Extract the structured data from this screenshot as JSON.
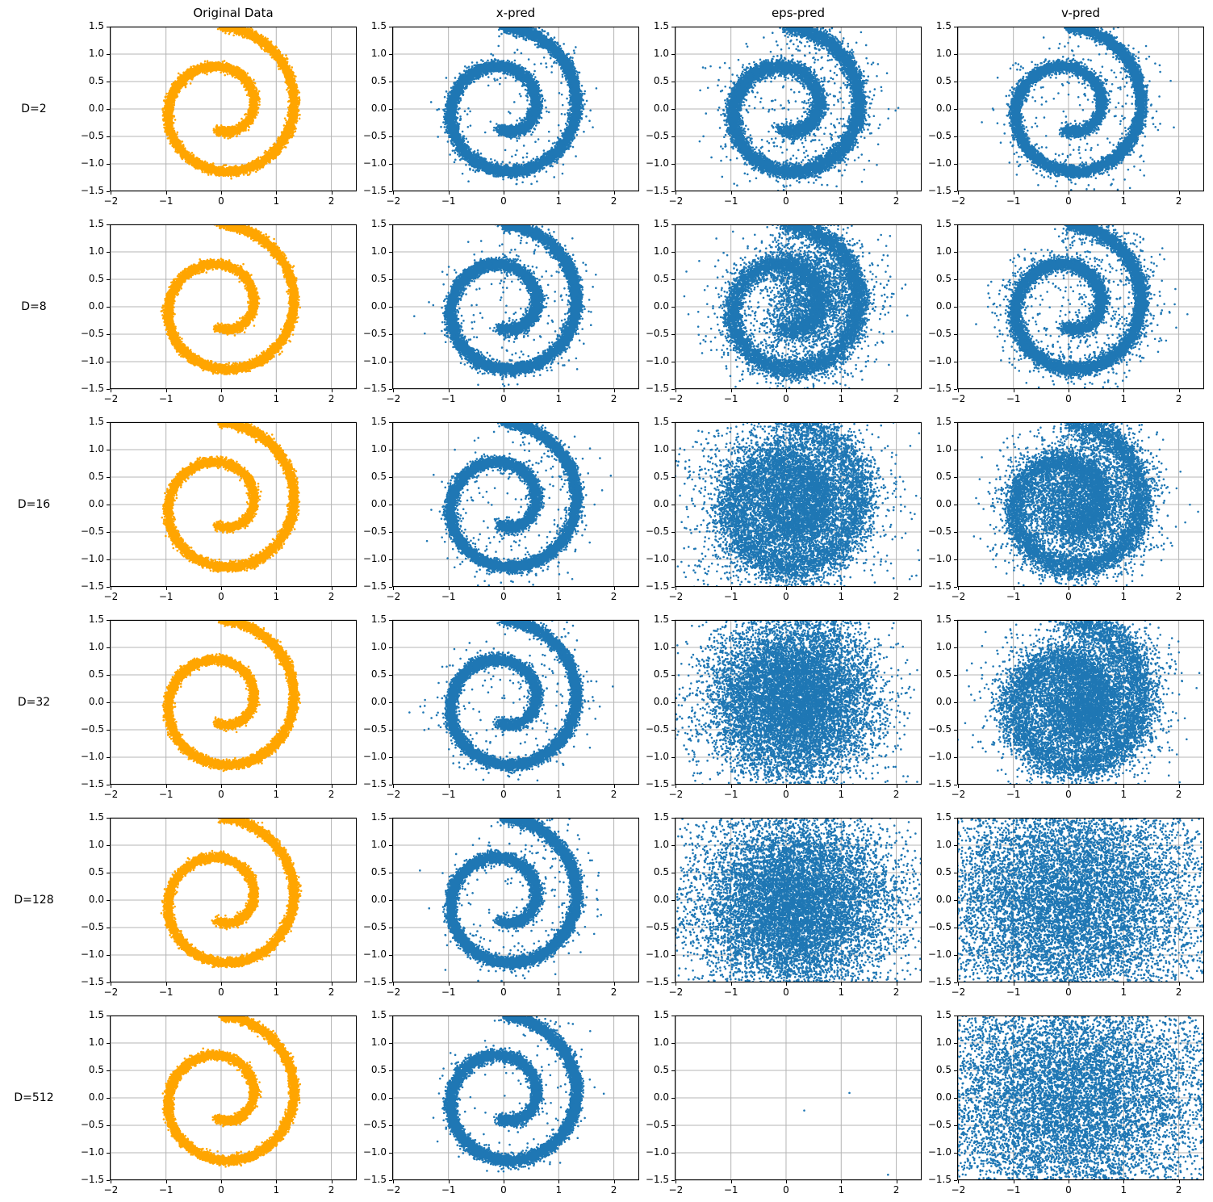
{
  "chart_data": {
    "type": "scatter",
    "description": "Grid of 2D scatter plots of a noisy two-arm spiral dataset and diffusion-model samples for three prediction parameterizations across latent dimensions",
    "columns": [
      "Original Data",
      "x-pred",
      "eps-pred",
      "v-pred"
    ],
    "rows": [
      {
        "label": "D=2"
      },
      {
        "label": "D=8"
      },
      {
        "label": "D=16"
      },
      {
        "label": "D=32"
      },
      {
        "label": "D=128"
      },
      {
        "label": "D=512"
      }
    ],
    "axes": {
      "xlim": [
        -2.02,
        2.46
      ],
      "ylim": [
        -1.5,
        1.5
      ],
      "xticks": [
        -2,
        -1,
        0,
        1,
        2
      ],
      "xtick_labels": [
        "−2",
        "−1",
        "0",
        "1",
        "2"
      ],
      "yticks": [
        1.5,
        1.0,
        0.5,
        0.0,
        -0.5,
        -1.0,
        -1.5
      ],
      "ytick_labels": [
        "1.5",
        "1.0",
        "0.5",
        "0.0",
        "−0.5",
        "−1.0",
        "−1.5"
      ],
      "grid": true
    },
    "colors": {
      "original": "#ffa500",
      "prediction": "#1f77b4",
      "grid": "#b4b4b4",
      "spine": "#000000",
      "background": "#ffffff"
    },
    "marker_radius_px": 1.3,
    "spiral": {
      "theta_start_deg": 258,
      "sweep_deg": 552,
      "r_inner": 0.38,
      "r_outer": 1.5
    },
    "panels": [
      [
        {
          "color": "#ffa500",
          "parts": [
            {
              "shape": "spiral",
              "n": 12000,
              "noise": 0.037
            }
          ]
        },
        {
          "color": "#1f77b4",
          "parts": [
            {
              "shape": "spiral",
              "n": 11000,
              "noise": 0.05
            },
            {
              "shape": "spiral",
              "n": 300,
              "noise": 0.2
            }
          ]
        },
        {
          "color": "#1f77b4",
          "parts": [
            {
              "shape": "spiral",
              "n": 10500,
              "noise": 0.065
            },
            {
              "shape": "spiral",
              "n": 650,
              "noise": 0.3
            }
          ]
        },
        {
          "color": "#1f77b4",
          "parts": [
            {
              "shape": "spiral",
              "n": 10800,
              "noise": 0.05
            },
            {
              "shape": "spiral",
              "n": 450,
              "noise": 0.25
            }
          ]
        }
      ],
      [
        {
          "color": "#ffa500",
          "parts": [
            {
              "shape": "spiral",
              "n": 12000,
              "noise": 0.037
            }
          ]
        },
        {
          "color": "#1f77b4",
          "parts": [
            {
              "shape": "spiral",
              "n": 11000,
              "noise": 0.052
            },
            {
              "shape": "spiral",
              "n": 400,
              "noise": 0.22
            }
          ]
        },
        {
          "color": "#1f77b4",
          "parts": [
            {
              "shape": "spiral",
              "n": 7500,
              "noise": 0.085
            },
            {
              "shape": "gauss",
              "n": 2300,
              "cx": 0.5,
              "cy": 0.2,
              "sx": 0.42,
              "sy": 0.5
            },
            {
              "shape": "spiral",
              "n": 1300,
              "noise": 0.35
            }
          ]
        },
        {
          "color": "#1f77b4",
          "parts": [
            {
              "shape": "spiral",
              "n": 10000,
              "noise": 0.06
            },
            {
              "shape": "spiral",
              "n": 950,
              "noise": 0.28
            }
          ]
        }
      ],
      [
        {
          "color": "#ffa500",
          "parts": [
            {
              "shape": "spiral",
              "n": 12000,
              "noise": 0.037
            }
          ]
        },
        {
          "color": "#1f77b4",
          "parts": [
            {
              "shape": "spiral",
              "n": 11000,
              "noise": 0.05
            },
            {
              "shape": "spiral",
              "n": 350,
              "noise": 0.25
            }
          ]
        },
        {
          "color": "#1f77b4",
          "parts": [
            {
              "shape": "spiral",
              "n": 4500,
              "noise": 0.15
            },
            {
              "shape": "gauss",
              "n": 4800,
              "cx": 0.1,
              "cy": 0.0,
              "sx": 0.62,
              "sy": 0.66
            },
            {
              "shape": "gauss",
              "n": 1700,
              "cx": 0.0,
              "cy": 0.0,
              "sx": 0.95,
              "sy": 0.95
            }
          ]
        },
        {
          "color": "#1f77b4",
          "parts": [
            {
              "shape": "spiral",
              "n": 6000,
              "noise": 0.1
            },
            {
              "shape": "gauss",
              "n": 3300,
              "cx": 0.15,
              "cy": 0.08,
              "sx": 0.55,
              "sy": 0.5
            },
            {
              "shape": "spiral",
              "n": 1700,
              "noise": 0.3
            }
          ]
        }
      ],
      [
        {
          "color": "#ffa500",
          "parts": [
            {
              "shape": "spiral",
              "n": 12000,
              "noise": 0.037
            }
          ]
        },
        {
          "color": "#1f77b4",
          "parts": [
            {
              "shape": "spiral",
              "n": 11000,
              "noise": 0.05
            },
            {
              "shape": "spiral",
              "n": 350,
              "noise": 0.25
            }
          ]
        },
        {
          "color": "#1f77b4",
          "parts": [
            {
              "shape": "gauss",
              "n": 7700,
              "cx": 0.1,
              "cy": 0.1,
              "sx": 0.68,
              "sy": 0.68
            },
            {
              "shape": "spiral",
              "n": 2200,
              "noise": 0.25
            },
            {
              "shape": "gauss",
              "n": 1100,
              "cx": 0.0,
              "cy": 0.0,
              "sx": 1.05,
              "sy": 0.9
            }
          ]
        },
        {
          "color": "#1f77b4",
          "parts": [
            {
              "shape": "spiral",
              "n": 5000,
              "noise": 0.15
            },
            {
              "shape": "gauss",
              "n": 4400,
              "cx": 0.2,
              "cy": 0.0,
              "sx": 0.6,
              "sy": 0.55
            },
            {
              "shape": "spiral",
              "n": 1600,
              "noise": 0.4
            }
          ]
        }
      ],
      [
        {
          "color": "#ffa500",
          "parts": [
            {
              "shape": "spiral",
              "n": 12000,
              "noise": 0.037
            }
          ]
        },
        {
          "color": "#1f77b4",
          "parts": [
            {
              "shape": "spiral",
              "n": 11000,
              "noise": 0.05
            },
            {
              "shape": "spiral",
              "n": 350,
              "noise": 0.25
            }
          ]
        },
        {
          "color": "#1f77b4",
          "parts": [
            {
              "shape": "gauss",
              "n": 9500,
              "cx": 0.15,
              "cy": -0.08,
              "sx": 0.85,
              "sy": 0.78
            },
            {
              "shape": "gauss",
              "n": 1500,
              "cx": 0.1,
              "cy": 0.0,
              "sx": 1.3,
              "sy": 1.1
            }
          ]
        },
        {
          "color": "#1f77b4",
          "parts": [
            {
              "shape": "gauss",
              "n": 10000,
              "cx": 0.0,
              "cy": 0.0,
              "sx": 1.18,
              "sy": 1.05
            },
            {
              "shape": "gauss",
              "n": 1000,
              "cx": 0.0,
              "cy": 0.0,
              "sx": 1.7,
              "sy": 1.4
            }
          ]
        }
      ],
      [
        {
          "color": "#ffa500",
          "parts": [
            {
              "shape": "spiral",
              "n": 12000,
              "noise": 0.037
            }
          ]
        },
        {
          "color": "#1f77b4",
          "parts": [
            {
              "shape": "spiral",
              "n": 11000,
              "noise": 0.05
            },
            {
              "shape": "spiral",
              "n": 250,
              "noise": 0.2
            }
          ]
        },
        {
          "color": "#1f77b4",
          "parts": [
            {
              "shape": "points",
              "pts": [
                [
                  0.33,
                  -0.23
                ],
                [
                  1.15,
                  0.09
                ],
                [
                  1.85,
                  -1.4
                ]
              ]
            }
          ]
        },
        {
          "color": "#1f77b4",
          "parts": [
            {
              "shape": "gauss",
              "n": 10000,
              "cx": 0.05,
              "cy": 0.0,
              "sx": 1.28,
              "sy": 1.1
            },
            {
              "shape": "gauss",
              "n": 1200,
              "cx": 0.0,
              "cy": 0.0,
              "sx": 1.8,
              "sy": 1.5
            }
          ]
        }
      ]
    ]
  }
}
